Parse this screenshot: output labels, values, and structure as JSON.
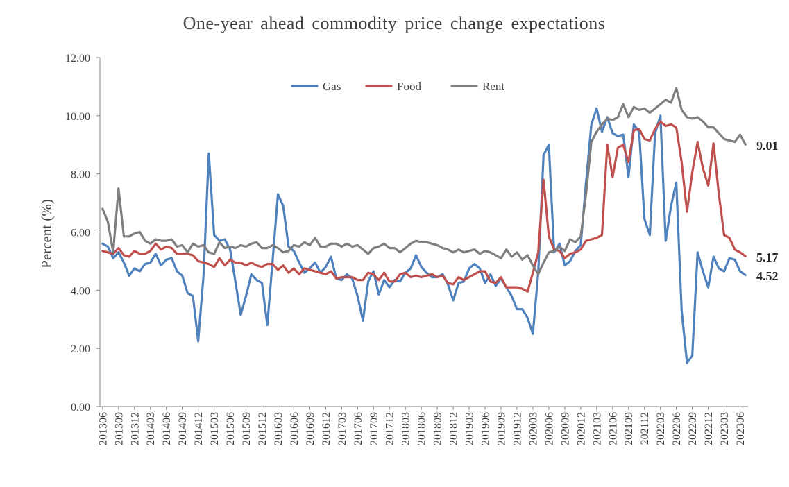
{
  "chart_data": {
    "type": "line",
    "title": "One-year ahead commodity price change expectations",
    "xlabel": "",
    "ylabel": "Percent (%)",
    "ylim": [
      0,
      12
    ],
    "yticks": [
      "0.00",
      "2.00",
      "4.00",
      "6.00",
      "8.00",
      "10.00",
      "12.00"
    ],
    "grid": false,
    "legend_position": "top-center",
    "x": [
      "201306",
      "201307",
      "201308",
      "201309",
      "201310",
      "201311",
      "201312",
      "201401",
      "201402",
      "201403",
      "201404",
      "201405",
      "201406",
      "201407",
      "201408",
      "201409",
      "201410",
      "201411",
      "201412",
      "201501",
      "201502",
      "201503",
      "201504",
      "201505",
      "201506",
      "201507",
      "201508",
      "201509",
      "201510",
      "201511",
      "201512",
      "201601",
      "201602",
      "201603",
      "201604",
      "201605",
      "201606",
      "201607",
      "201608",
      "201609",
      "201610",
      "201611",
      "201612",
      "201701",
      "201702",
      "201703",
      "201704",
      "201705",
      "201706",
      "201707",
      "201708",
      "201709",
      "201710",
      "201711",
      "201712",
      "201801",
      "201802",
      "201803",
      "201804",
      "201805",
      "201806",
      "201807",
      "201808",
      "201809",
      "201810",
      "201811",
      "201812",
      "201901",
      "201902",
      "201903",
      "201904",
      "201905",
      "201906",
      "201907",
      "201908",
      "201909",
      "201910",
      "201911",
      "201912",
      "202001",
      "202002",
      "202003",
      "202004",
      "202005",
      "202006",
      "202007",
      "202008",
      "202009",
      "202010",
      "202011",
      "202012",
      "202101",
      "202102",
      "202103",
      "202104",
      "202105",
      "202106",
      "202107",
      "202108",
      "202109",
      "202110",
      "202111",
      "202112",
      "202201",
      "202202",
      "202203",
      "202204",
      "202205",
      "202206",
      "202207",
      "202208",
      "202209",
      "202210",
      "202211",
      "202212",
      "202301",
      "202302",
      "202303",
      "202304",
      "202305",
      "202306",
      "202307"
    ],
    "xtick_labels": [
      "201306",
      "201309",
      "201312",
      "201403",
      "201406",
      "201409",
      "201412",
      "201503",
      "201506",
      "201509",
      "201512",
      "201603",
      "201606",
      "201609",
      "201612",
      "201703",
      "201706",
      "201709",
      "201712",
      "201803",
      "201806",
      "201809",
      "201812",
      "201903",
      "201906",
      "201909",
      "201912",
      "202003",
      "202006",
      "202009",
      "202012",
      "202103",
      "202106",
      "202109",
      "202112",
      "202203",
      "202206",
      "202209",
      "202212",
      "202303",
      "202306"
    ],
    "series": [
      {
        "name": "Gas",
        "color": "#4F81BD",
        "values": [
          5.6,
          5.5,
          5.1,
          5.3,
          4.95,
          4.5,
          4.75,
          4.65,
          4.9,
          4.95,
          5.25,
          4.85,
          5.05,
          5.1,
          4.65,
          4.5,
          3.9,
          3.8,
          2.25,
          4.5,
          8.7,
          5.9,
          5.7,
          5.75,
          5.4,
          4.3,
          3.15,
          3.8,
          4.55,
          4.35,
          4.25,
          2.8,
          5.0,
          7.3,
          6.9,
          5.5,
          5.35,
          4.95,
          4.6,
          4.75,
          4.95,
          4.6,
          4.8,
          5.15,
          4.4,
          4.35,
          4.55,
          4.4,
          3.8,
          2.95,
          4.3,
          4.65,
          3.85,
          4.35,
          4.1,
          4.35,
          4.3,
          4.6,
          4.75,
          5.2,
          4.8,
          4.6,
          4.45,
          4.45,
          4.55,
          4.2,
          3.65,
          4.25,
          4.3,
          4.75,
          4.9,
          4.75,
          4.25,
          4.55,
          4.15,
          4.4,
          4.1,
          3.8,
          3.35,
          3.35,
          3.05,
          2.5,
          4.6,
          8.65,
          9.0,
          5.3,
          5.6,
          4.85,
          5.0,
          5.35,
          5.55,
          7.7,
          9.7,
          10.25,
          9.45,
          9.95,
          9.4,
          9.3,
          9.35,
          7.9,
          9.7,
          9.45,
          6.45,
          5.9,
          9.4,
          10.0,
          5.7,
          6.9,
          7.7,
          3.3,
          1.5,
          1.75,
          5.3,
          4.65,
          4.1,
          5.15,
          4.75,
          4.65,
          5.1,
          5.05,
          4.65,
          4.52
        ]
      },
      {
        "name": "Food",
        "color": "#C0504D",
        "values": [
          5.35,
          5.3,
          5.25,
          5.45,
          5.2,
          5.15,
          5.35,
          5.25,
          5.25,
          5.35,
          5.6,
          5.4,
          5.5,
          5.45,
          5.25,
          5.25,
          5.25,
          5.2,
          5.0,
          4.95,
          4.9,
          4.8,
          5.1,
          4.85,
          5.05,
          4.95,
          4.95,
          4.85,
          4.95,
          4.85,
          4.8,
          4.9,
          4.9,
          4.7,
          4.85,
          4.6,
          4.75,
          4.55,
          4.75,
          4.7,
          4.65,
          4.6,
          4.55,
          4.65,
          4.4,
          4.45,
          4.45,
          4.45,
          4.35,
          4.35,
          4.6,
          4.55,
          4.35,
          4.6,
          4.3,
          4.3,
          4.55,
          4.6,
          4.45,
          4.5,
          4.45,
          4.5,
          4.55,
          4.45,
          4.5,
          4.25,
          4.2,
          4.45,
          4.35,
          4.45,
          4.55,
          4.65,
          4.65,
          4.3,
          4.25,
          4.45,
          4.1,
          4.1,
          4.1,
          4.05,
          3.95,
          4.6,
          5.3,
          7.8,
          5.85,
          5.4,
          5.35,
          5.1,
          5.25,
          5.3,
          5.4,
          5.7,
          5.75,
          5.8,
          5.9,
          9.0,
          7.9,
          8.9,
          9.0,
          8.4,
          9.5,
          9.55,
          9.2,
          9.15,
          9.55,
          9.8,
          9.65,
          9.7,
          9.6,
          8.4,
          6.7,
          8.05,
          9.1,
          8.2,
          7.6,
          9.05,
          7.3,
          5.9,
          5.8,
          5.4,
          5.3,
          5.17
        ]
      },
      {
        "name": "Rent",
        "color": "#7F7F7F",
        "values": [
          6.8,
          6.35,
          5.3,
          7.5,
          5.85,
          5.85,
          5.95,
          6.0,
          5.7,
          5.6,
          5.75,
          5.7,
          5.7,
          5.75,
          5.5,
          5.55,
          5.3,
          5.6,
          5.5,
          5.55,
          5.3,
          5.25,
          5.65,
          5.45,
          5.5,
          5.45,
          5.55,
          5.5,
          5.6,
          5.65,
          5.45,
          5.45,
          5.55,
          5.45,
          5.3,
          5.35,
          5.55,
          5.5,
          5.65,
          5.55,
          5.8,
          5.5,
          5.5,
          5.6,
          5.6,
          5.5,
          5.6,
          5.5,
          5.55,
          5.4,
          5.25,
          5.45,
          5.5,
          5.6,
          5.45,
          5.45,
          5.3,
          5.45,
          5.6,
          5.7,
          5.65,
          5.65,
          5.6,
          5.55,
          5.45,
          5.4,
          5.3,
          5.4,
          5.3,
          5.35,
          5.4,
          5.25,
          5.35,
          5.3,
          5.2,
          5.1,
          5.4,
          5.15,
          5.3,
          5.05,
          5.2,
          4.85,
          4.55,
          4.95,
          5.3,
          5.35,
          5.5,
          5.35,
          5.75,
          5.65,
          5.85,
          7.3,
          9.1,
          9.45,
          9.7,
          9.9,
          9.85,
          9.95,
          10.4,
          9.95,
          10.3,
          10.2,
          10.25,
          10.1,
          10.25,
          10.4,
          10.55,
          10.45,
          10.95,
          10.2,
          9.95,
          9.9,
          9.95,
          9.8,
          9.6,
          9.6,
          9.4,
          9.2,
          9.15,
          9.1,
          9.35,
          9.01
        ]
      }
    ],
    "end_labels": [
      "9.01",
      "5.17",
      "4.52"
    ]
  }
}
